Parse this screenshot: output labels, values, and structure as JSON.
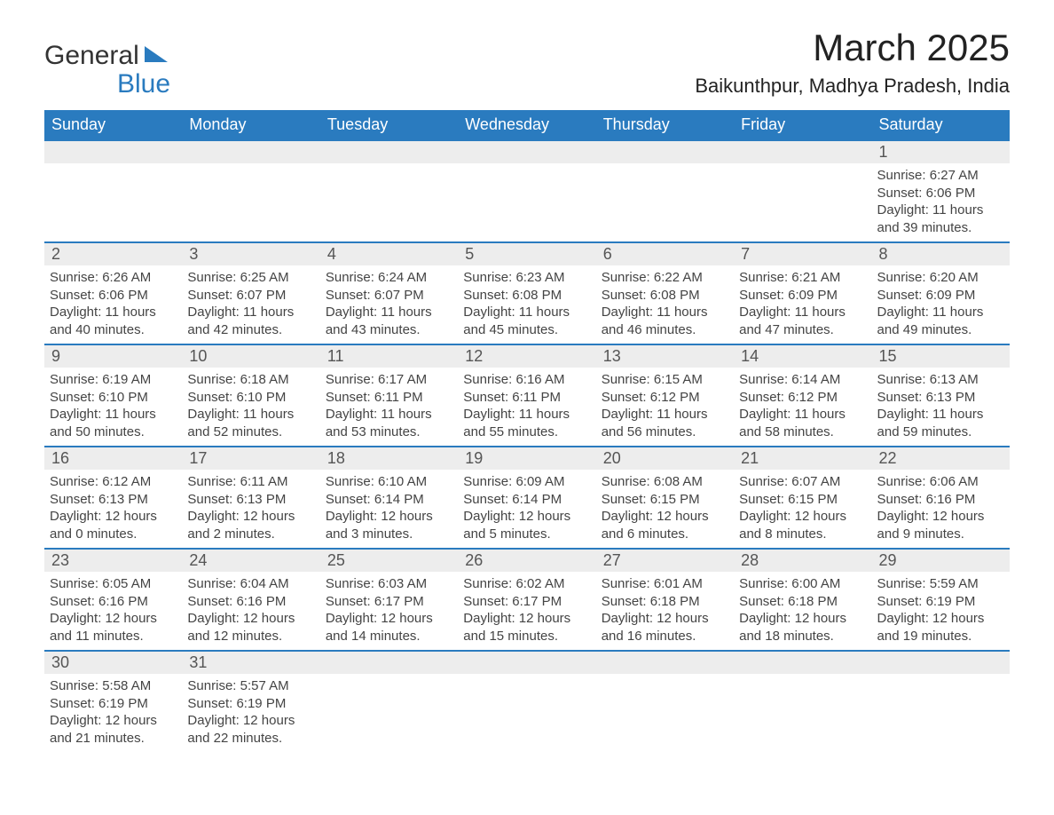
{
  "brand": {
    "word1": "General",
    "word2": "Blue",
    "accent_color": "#2a7bbf"
  },
  "title": "March 2025",
  "location": "Baikunthpur, Madhya Pradesh, India",
  "columns": [
    "Sunday",
    "Monday",
    "Tuesday",
    "Wednesday",
    "Thursday",
    "Friday",
    "Saturday"
  ],
  "colors": {
    "header_bg": "#2a7bbf",
    "header_text": "#ffffff",
    "date_row_bg": "#ededed",
    "week_border": "#2a7bbf",
    "body_text": "#444444",
    "date_text": "#555555",
    "page_bg": "#ffffff"
  },
  "typography": {
    "title_fontsize": 42,
    "location_fontsize": 22,
    "header_fontsize": 18,
    "date_fontsize": 18,
    "info_fontsize": 15,
    "font_family": "Arial"
  },
  "labels": {
    "sunrise_prefix": "Sunrise: ",
    "sunset_prefix": "Sunset: ",
    "daylight_prefix": "Daylight: "
  },
  "weeks": [
    [
      null,
      null,
      null,
      null,
      null,
      null,
      {
        "date": "1",
        "sunrise": "6:27 AM",
        "sunset": "6:06 PM",
        "daylight": "11 hours and 39 minutes."
      }
    ],
    [
      {
        "date": "2",
        "sunrise": "6:26 AM",
        "sunset": "6:06 PM",
        "daylight": "11 hours and 40 minutes."
      },
      {
        "date": "3",
        "sunrise": "6:25 AM",
        "sunset": "6:07 PM",
        "daylight": "11 hours and 42 minutes."
      },
      {
        "date": "4",
        "sunrise": "6:24 AM",
        "sunset": "6:07 PM",
        "daylight": "11 hours and 43 minutes."
      },
      {
        "date": "5",
        "sunrise": "6:23 AM",
        "sunset": "6:08 PM",
        "daylight": "11 hours and 45 minutes."
      },
      {
        "date": "6",
        "sunrise": "6:22 AM",
        "sunset": "6:08 PM",
        "daylight": "11 hours and 46 minutes."
      },
      {
        "date": "7",
        "sunrise": "6:21 AM",
        "sunset": "6:09 PM",
        "daylight": "11 hours and 47 minutes."
      },
      {
        "date": "8",
        "sunrise": "6:20 AM",
        "sunset": "6:09 PM",
        "daylight": "11 hours and 49 minutes."
      }
    ],
    [
      {
        "date": "9",
        "sunrise": "6:19 AM",
        "sunset": "6:10 PM",
        "daylight": "11 hours and 50 minutes."
      },
      {
        "date": "10",
        "sunrise": "6:18 AM",
        "sunset": "6:10 PM",
        "daylight": "11 hours and 52 minutes."
      },
      {
        "date": "11",
        "sunrise": "6:17 AM",
        "sunset": "6:11 PM",
        "daylight": "11 hours and 53 minutes."
      },
      {
        "date": "12",
        "sunrise": "6:16 AM",
        "sunset": "6:11 PM",
        "daylight": "11 hours and 55 minutes."
      },
      {
        "date": "13",
        "sunrise": "6:15 AM",
        "sunset": "6:12 PM",
        "daylight": "11 hours and 56 minutes."
      },
      {
        "date": "14",
        "sunrise": "6:14 AM",
        "sunset": "6:12 PM",
        "daylight": "11 hours and 58 minutes."
      },
      {
        "date": "15",
        "sunrise": "6:13 AM",
        "sunset": "6:13 PM",
        "daylight": "11 hours and 59 minutes."
      }
    ],
    [
      {
        "date": "16",
        "sunrise": "6:12 AM",
        "sunset": "6:13 PM",
        "daylight": "12 hours and 0 minutes."
      },
      {
        "date": "17",
        "sunrise": "6:11 AM",
        "sunset": "6:13 PM",
        "daylight": "12 hours and 2 minutes."
      },
      {
        "date": "18",
        "sunrise": "6:10 AM",
        "sunset": "6:14 PM",
        "daylight": "12 hours and 3 minutes."
      },
      {
        "date": "19",
        "sunrise": "6:09 AM",
        "sunset": "6:14 PM",
        "daylight": "12 hours and 5 minutes."
      },
      {
        "date": "20",
        "sunrise": "6:08 AM",
        "sunset": "6:15 PM",
        "daylight": "12 hours and 6 minutes."
      },
      {
        "date": "21",
        "sunrise": "6:07 AM",
        "sunset": "6:15 PM",
        "daylight": "12 hours and 8 minutes."
      },
      {
        "date": "22",
        "sunrise": "6:06 AM",
        "sunset": "6:16 PM",
        "daylight": "12 hours and 9 minutes."
      }
    ],
    [
      {
        "date": "23",
        "sunrise": "6:05 AM",
        "sunset": "6:16 PM",
        "daylight": "12 hours and 11 minutes."
      },
      {
        "date": "24",
        "sunrise": "6:04 AM",
        "sunset": "6:16 PM",
        "daylight": "12 hours and 12 minutes."
      },
      {
        "date": "25",
        "sunrise": "6:03 AM",
        "sunset": "6:17 PM",
        "daylight": "12 hours and 14 minutes."
      },
      {
        "date": "26",
        "sunrise": "6:02 AM",
        "sunset": "6:17 PM",
        "daylight": "12 hours and 15 minutes."
      },
      {
        "date": "27",
        "sunrise": "6:01 AM",
        "sunset": "6:18 PM",
        "daylight": "12 hours and 16 minutes."
      },
      {
        "date": "28",
        "sunrise": "6:00 AM",
        "sunset": "6:18 PM",
        "daylight": "12 hours and 18 minutes."
      },
      {
        "date": "29",
        "sunrise": "5:59 AM",
        "sunset": "6:19 PM",
        "daylight": "12 hours and 19 minutes."
      }
    ],
    [
      {
        "date": "30",
        "sunrise": "5:58 AM",
        "sunset": "6:19 PM",
        "daylight": "12 hours and 21 minutes."
      },
      {
        "date": "31",
        "sunrise": "5:57 AM",
        "sunset": "6:19 PM",
        "daylight": "12 hours and 22 minutes."
      },
      null,
      null,
      null,
      null,
      null
    ]
  ]
}
